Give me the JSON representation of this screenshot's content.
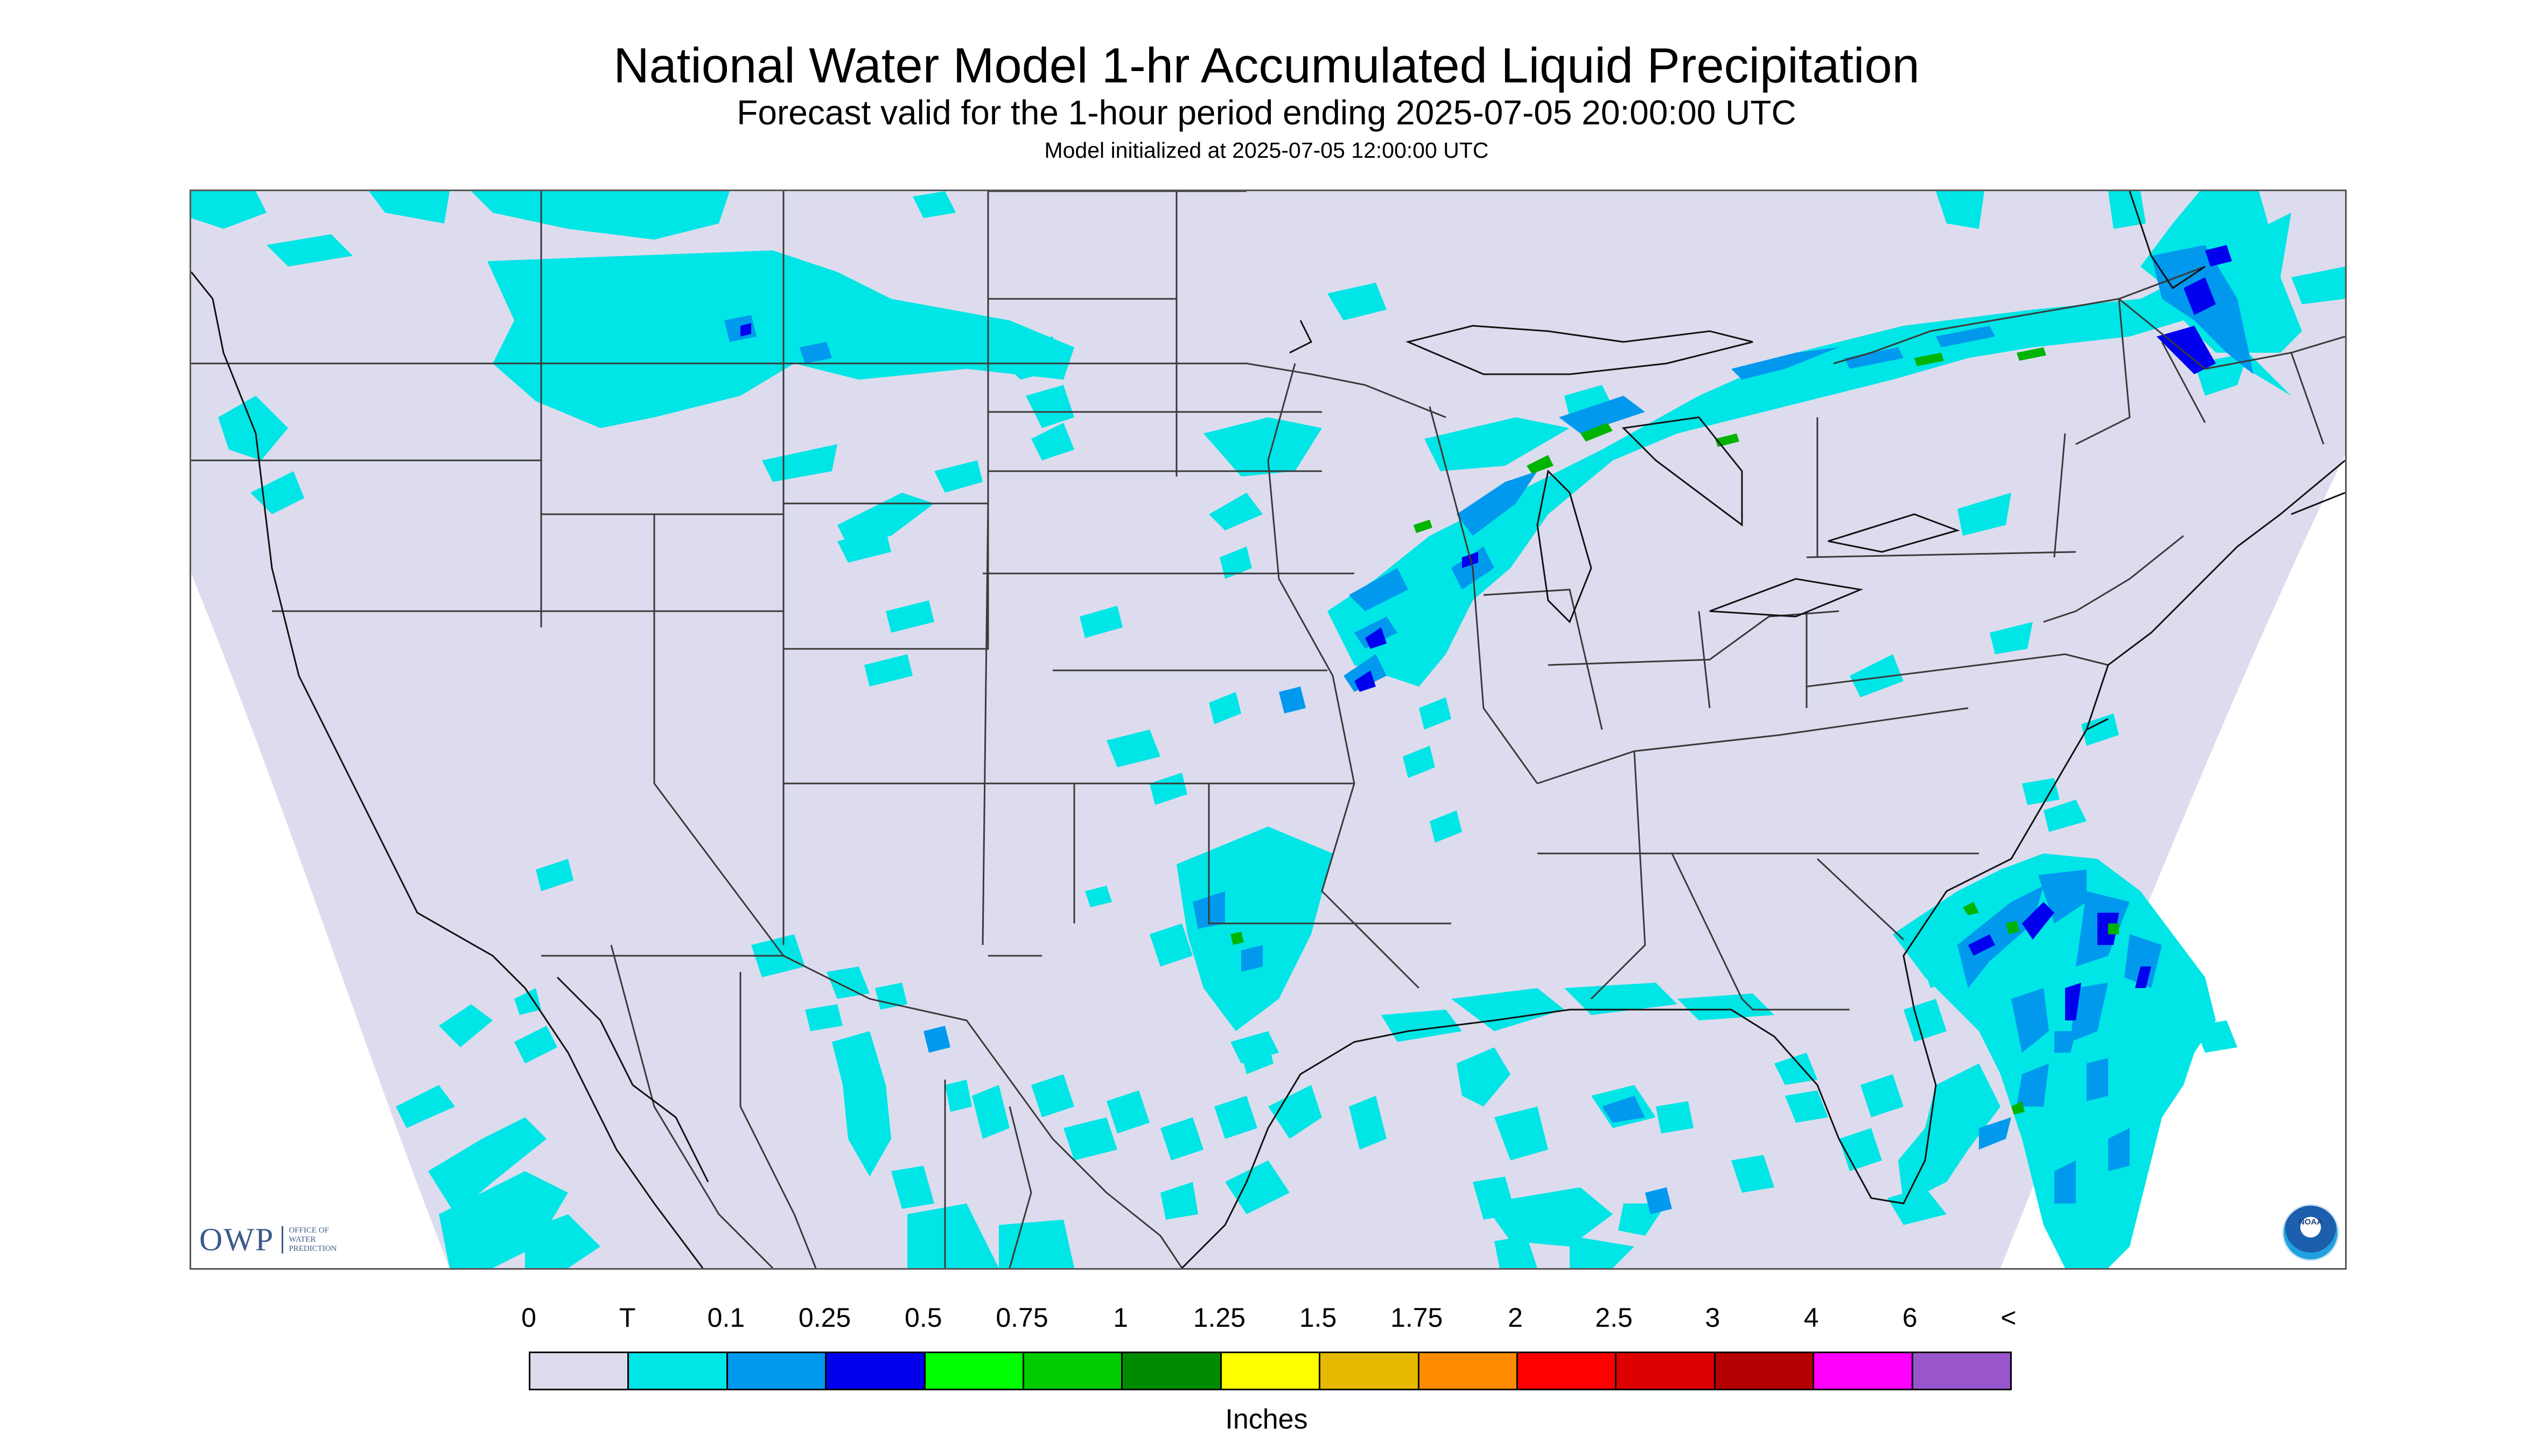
{
  "header": {
    "title": "National Water Model 1-hr Accumulated Liquid Precipitation",
    "subtitle": "Forecast valid for the 1-hour period ending 2025-07-05 20:00:00 UTC",
    "init": "Model initialized at 2025-07-05 12:00:00 UTC"
  },
  "map": {
    "background_color": "#dcdcee",
    "light_precip_color": "#00e5e5",
    "moderate_precip_color": "#0099ee",
    "heavy_precip_color": "#0000ee",
    "green_precip_color": "#00b400"
  },
  "logos": {
    "owp_mark": "OWP",
    "owp_line1": "OFFICE OF",
    "owp_line2": "WATER",
    "owp_line3": "PREDICTION",
    "noaa": "NOAA"
  },
  "legend": {
    "labels": [
      "0",
      "T",
      "0.1",
      "0.25",
      "0.5",
      "0.75",
      "1",
      "1.25",
      "1.5",
      "1.75",
      "2",
      "2.5",
      "3",
      "4",
      "6",
      "<"
    ],
    "colors": [
      "#dcdcee",
      "#00e5e5",
      "#0099ee",
      "#0000ee",
      "#00ff00",
      "#00cc00",
      "#008c00",
      "#ffff00",
      "#e6b800",
      "#ff8c00",
      "#ff0000",
      "#dd0000",
      "#b40000",
      "#ff00ff",
      "#9955cc"
    ],
    "units": "Inches"
  }
}
